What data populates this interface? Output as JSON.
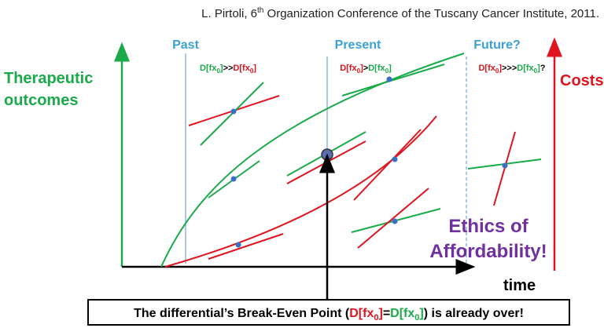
{
  "header": {
    "citation": [
      "L. Pirtoli, 6",
      "th",
      " Organization Conference of the Tuscany Cancer Institute, 2011."
    ]
  },
  "periods": [
    {
      "label": "Past",
      "formula": [
        "D[fx",
        "0",
        "]",
        ">>",
        "D[fx",
        "0",
        "]"
      ]
    },
    {
      "label": "Present",
      "formula": [
        "D[fx",
        "0",
        "]",
        ">",
        "D[fx",
        "0",
        "]"
      ]
    },
    {
      "label": "Future?",
      "formula": [
        "D[fx",
        "0",
        "]",
        ">>>",
        "D[fx",
        "0",
        "]",
        "?"
      ]
    }
  ],
  "axes": {
    "y_left": [
      "Therapeutic",
      "outcomes"
    ],
    "y_right": "Costs",
    "x": "time"
  },
  "callout": [
    "Ethics of",
    "Affordability!"
  ],
  "footer": [
    "The differential’s Break-Even Point (",
    "D[fx",
    "0",
    "]",
    "=",
    "D[fx",
    "0",
    "]",
    ") is already over!"
  ]
}
